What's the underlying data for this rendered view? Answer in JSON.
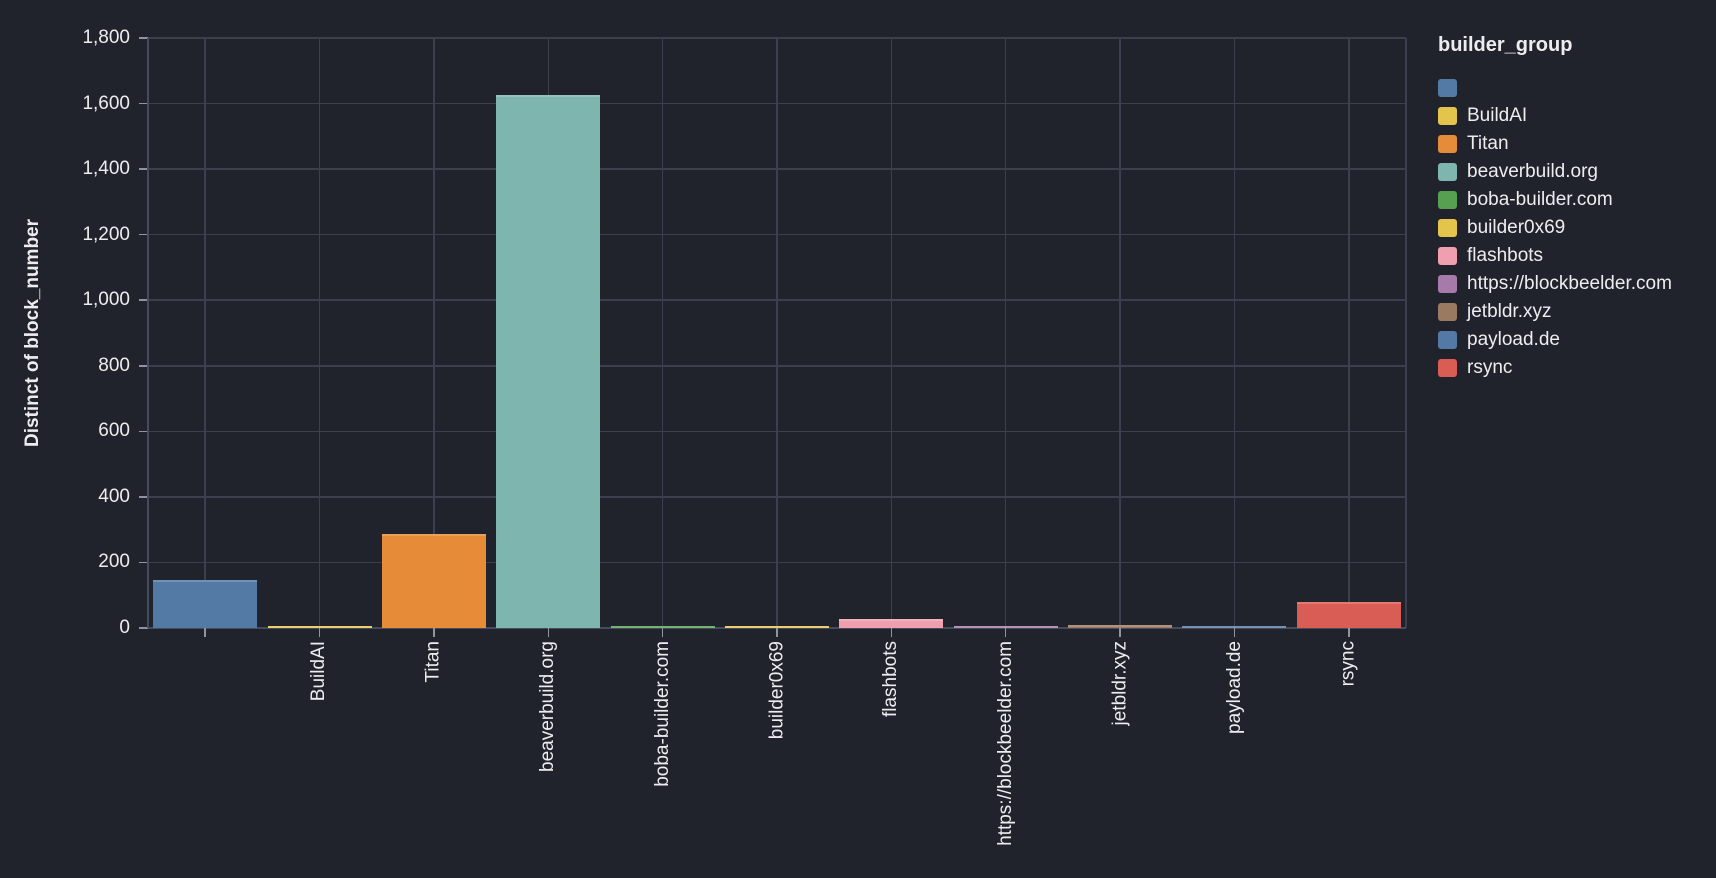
{
  "chart_data": {
    "type": "bar",
    "title": "",
    "xlabel": "",
    "ylabel": "Distinct of block_number",
    "ylim": [
      0,
      1800
    ],
    "ytick_step": 200,
    "ytick_labels": [
      "0",
      "200",
      "400",
      "600",
      "800",
      "1,000",
      "1,200",
      "1,400",
      "1,600",
      "1,800"
    ],
    "grid": true,
    "legend_title": "builder_group",
    "legend_position": "right",
    "categories": [
      "",
      "BuildAI",
      "Titan",
      "beaverbuild.org",
      "boba-builder.com",
      "builder0x69",
      "flashbots",
      "https://blockbeelder.com",
      "jetbldr.xyz",
      "payload.de",
      "rsync"
    ],
    "values": [
      147,
      6,
      287,
      1627,
      4,
      6,
      26,
      3,
      9,
      3,
      80
    ],
    "colors": [
      "#5379a5",
      "#e3c44c",
      "#e68c38",
      "#7fb5af",
      "#57a052",
      "#e3c44c",
      "#ef9fae",
      "#a77ba9",
      "#9b7a62",
      "#5379a5",
      "#d95d55"
    ]
  },
  "theme": {
    "background": "#20232c",
    "grid_color": "#3b3f50",
    "axis_color": "#474b5e",
    "tick_color": "#9093a0",
    "text_color": "#ededf0"
  }
}
